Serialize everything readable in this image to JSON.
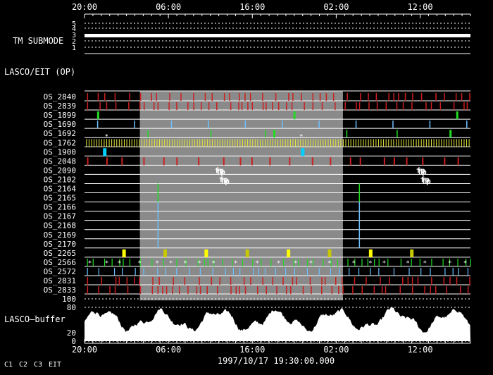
{
  "chart_data": {
    "type": "timeline",
    "time_ticks_top": [
      "20:00",
      "06:00",
      "16:00",
      "02:00",
      "12:00"
    ],
    "time_ticks_bottom": [
      "20:00",
      "06:00",
      "16:00",
      "02:00",
      "12:00"
    ],
    "time_range_hours": [
      0,
      46
    ],
    "timestamp": "1997/10/17 19:30:00.000",
    "submode_label": "TM SUBMODE",
    "submode_ticks": [
      "5",
      "4",
      "3",
      "2",
      "1"
    ],
    "submode_value": 4,
    "lasco_label": "LASCO/EIT (OP)",
    "shaded_interval_hours": [
      6.6,
      30.8
    ],
    "rows": [
      {
        "name": "OS_2840",
        "color": "#cc2020"
      },
      {
        "name": "OS_2839",
        "color": "#cc2020"
      },
      {
        "name": "OS_1899",
        "color": "#22dd22"
      },
      {
        "name": "OS_1690",
        "color": "#6ec0ff"
      },
      {
        "name": "OS_1692",
        "color": "#22dd22"
      },
      {
        "name": "OS_1762",
        "color": "#e8e840"
      },
      {
        "name": "OS_1900",
        "color": "#00d0ff"
      },
      {
        "name": "OS_2048",
        "color": "#cc2020"
      },
      {
        "name": "OS_2090",
        "color": "#ff2020"
      },
      {
        "name": "OS_2102",
        "color": "#ff2020"
      },
      {
        "name": "OS_2164",
        "color": "#22dd22"
      },
      {
        "name": "OS_2165",
        "color": "#22dd22"
      },
      {
        "name": "OS_2166",
        "color": "#6ec0ff"
      },
      {
        "name": "OS_2167",
        "color": "#6ec0ff"
      },
      {
        "name": "OS_2168",
        "color": "#6ec0ff"
      },
      {
        "name": "OS_2169",
        "color": "#6ec0ff"
      },
      {
        "name": "OS_2170",
        "color": "#6ec0ff"
      },
      {
        "name": "OS_2265",
        "color": "#ffff00"
      },
      {
        "name": "OS_2566",
        "color": "#22dd22"
      },
      {
        "name": "OS_2572",
        "color": "#6ec0ff"
      },
      {
        "name": "OS_2831",
        "color": "#cc2020"
      },
      {
        "name": "OS_2833",
        "color": "#cc2020"
      }
    ],
    "fp_annotations": [
      {
        "row": "OS_2090",
        "hour": 15.5,
        "text": "fp"
      },
      {
        "row": "OS_2102",
        "hour": 16.0,
        "text": "fp"
      },
      {
        "row": "OS_2090",
        "hour": 39.5,
        "text": "fp"
      },
      {
        "row": "OS_2102",
        "hour": 40.0,
        "text": "fp"
      }
    ],
    "buffer_label": "LASCO–buffer",
    "buffer_ticks": [
      "100",
      "80",
      "20",
      "0"
    ],
    "buffer_ylim": [
      0,
      100
    ],
    "legend": [
      {
        "label": "C1",
        "color": "#ff2020"
      },
      {
        "label": "C2",
        "color": "#22dd22"
      },
      {
        "label": "C3",
        "color": "#6ec0ff"
      },
      {
        "label": "EIT",
        "color": "#ffff00"
      }
    ]
  }
}
